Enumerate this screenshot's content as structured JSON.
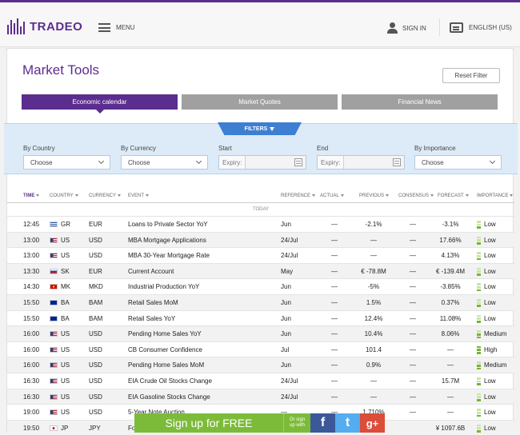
{
  "header": {
    "logo": "TRADEO",
    "menu_label": "MENU",
    "signin_label": "SIGN IN",
    "language_label": "ENGLISH (US)"
  },
  "page": {
    "title": "Market Tools",
    "reset_label": "Reset Filter",
    "tabs": [
      "Economic calendar",
      "Market Quotes",
      "Financial News"
    ]
  },
  "filters": {
    "badge": "FILTERS",
    "country": {
      "label": "By Country",
      "value": "Choose"
    },
    "currency": {
      "label": "By Currency",
      "value": "Choose"
    },
    "start": {
      "label": "Start",
      "prefix": "Expiry:"
    },
    "end": {
      "label": "End",
      "prefix": "Expiry:"
    },
    "importance": {
      "label": "By Importance",
      "value": "Choose"
    }
  },
  "table": {
    "headers": [
      "TIME",
      "COUNTRY",
      "CURRENCY",
      "EVENT",
      "REFERENCE",
      "ACTUAL",
      "PREVIOUS",
      "CONSENSUS",
      "FORECAST",
      "IMPORTANCE"
    ],
    "group_label": "TODAY",
    "rows": [
      {
        "time": "12:45",
        "country": "GR",
        "currency": "EUR",
        "event": "Loans to Private Sector YoY",
        "reference": "Jun",
        "actual": "—",
        "previous": "-2.1%",
        "consensus": "—",
        "forecast": "-3.1%",
        "importance": "Low"
      },
      {
        "time": "13:00",
        "country": "US",
        "currency": "USD",
        "event": "MBA Mortgage Applications",
        "reference": "24/Jul",
        "actual": "—",
        "previous": "—",
        "consensus": "—",
        "forecast": "17.66%",
        "importance": "Low"
      },
      {
        "time": "13:00",
        "country": "US",
        "currency": "USD",
        "event": "MBA 30-Year Mortgage Rate",
        "reference": "24/Jul",
        "actual": "—",
        "previous": "—",
        "consensus": "—",
        "forecast": "4.13%",
        "importance": "Low"
      },
      {
        "time": "13:30",
        "country": "SK",
        "currency": "EUR",
        "event": "Current Account",
        "reference": "May",
        "actual": "—",
        "previous": "€ -78.8M",
        "consensus": "—",
        "forecast": "€ -139.4M",
        "importance": "Low"
      },
      {
        "time": "14:30",
        "country": "MK",
        "currency": "MKD",
        "event": "Industrial Production YoY",
        "reference": "Jun",
        "actual": "—",
        "previous": "-5%",
        "consensus": "—",
        "forecast": "-3.85%",
        "importance": "Low"
      },
      {
        "time": "15:50",
        "country": "BA",
        "currency": "BAM",
        "event": "Retail Sales MoM",
        "reference": "Jun",
        "actual": "—",
        "previous": "1.5%",
        "consensus": "—",
        "forecast": "0.37%",
        "importance": "Low"
      },
      {
        "time": "15:50",
        "country": "BA",
        "currency": "BAM",
        "event": "Retail Sales YoY",
        "reference": "Jun",
        "actual": "—",
        "previous": "12.4%",
        "consensus": "—",
        "forecast": "11.08%",
        "importance": "Low"
      },
      {
        "time": "16:00",
        "country": "US",
        "currency": "USD",
        "event": "Pending Home Sales YoY",
        "reference": "Jun",
        "actual": "—",
        "previous": "10.4%",
        "consensus": "—",
        "forecast": "8.06%",
        "importance": "Medium"
      },
      {
        "time": "16:00",
        "country": "US",
        "currency": "USD",
        "event": "CB Consumer Confidence",
        "reference": "Jul",
        "actual": "—",
        "previous": "101.4",
        "consensus": "—",
        "forecast": "—",
        "importance": "High"
      },
      {
        "time": "16:00",
        "country": "US",
        "currency": "USD",
        "event": "Pending Home Sales MoM",
        "reference": "Jun",
        "actual": "—",
        "previous": "0.9%",
        "consensus": "—",
        "forecast": "—",
        "importance": "Medium"
      },
      {
        "time": "16:30",
        "country": "US",
        "currency": "USD",
        "event": "EIA Crude Oil Stocks Change",
        "reference": "24/Jul",
        "actual": "—",
        "previous": "—",
        "consensus": "—",
        "forecast": "15.7M",
        "importance": "Low"
      },
      {
        "time": "16:30",
        "country": "US",
        "currency": "USD",
        "event": "EIA Gasoline Stocks Change",
        "reference": "24/Jul",
        "actual": "—",
        "previous": "—",
        "consensus": "—",
        "forecast": "—",
        "importance": "Low"
      },
      {
        "time": "19:00",
        "country": "US",
        "currency": "USD",
        "event": "5-Year Note Auction",
        "reference": "—",
        "actual": "—",
        "previous": "1.710%",
        "consensus": "—",
        "forecast": "—",
        "importance": "Low"
      },
      {
        "time": "19:50",
        "country": "JP",
        "currency": "JPY",
        "event": "Fo",
        "reference": "",
        "actual": "",
        "previous": "",
        "consensus": "",
        "forecast": "¥ 1097.6B",
        "importance": "Low"
      }
    ]
  },
  "signup": {
    "button": "Sign up for FREE",
    "or_line1": "Or sign",
    "or_line2": "up with",
    "facebook": "f",
    "twitter": "t",
    "google": "g+"
  },
  "colors": {
    "brand": "#5b2d8e",
    "filter_bg": "#ddebf8",
    "signup_green": "#7cbb3a",
    "importance_green": "#74b72d"
  }
}
